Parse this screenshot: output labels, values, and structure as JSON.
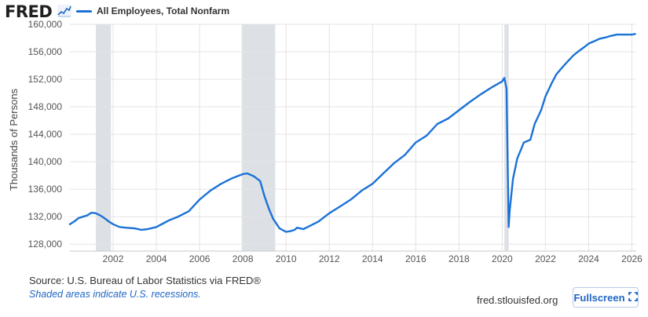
{
  "header": {
    "logo_text": "FRED",
    "logo_icon": "line-graph-icon",
    "legend_label": "All Employees, Total Nonfarm"
  },
  "colors": {
    "series": "#1b72d6",
    "recession": "#dde1e6",
    "grid": "#e3e3e3",
    "note": "#1f66c2",
    "brand": "#1f66c2"
  },
  "footer": {
    "source": "Source: U.S. Bureau of Labor Statistics via FRED®",
    "note": "Shaded areas indicate U.S. recessions.",
    "url": "fred.stlouisfed.org",
    "fullscreen_label": "Fullscreen",
    "fullscreen_icon": "expand-icon"
  },
  "chart_data": {
    "type": "line",
    "title": "All Employees, Total Nonfarm",
    "xlabel": "",
    "ylabel": "Thousands of Persons",
    "xlim": [
      2000.0,
      2026.2
    ],
    "ylim": [
      127000,
      160000
    ],
    "yticks": [
      128000,
      132000,
      136000,
      140000,
      144000,
      148000,
      152000,
      156000,
      160000
    ],
    "ytick_labels": [
      "128,000",
      "132,000",
      "136,000",
      "140,000",
      "144,000",
      "148,000",
      "152,000",
      "156,000",
      "160,000"
    ],
    "xticks": [
      2002,
      2004,
      2006,
      2008,
      2010,
      2012,
      2014,
      2016,
      2018,
      2020,
      2022,
      2024,
      2026
    ],
    "xtick_labels": [
      "2002",
      "2004",
      "2006",
      "2008",
      "2010",
      "2012",
      "2014",
      "2016",
      "2018",
      "2020",
      "2022",
      "2024",
      "2026"
    ],
    "grid": true,
    "recessions": [
      [
        2001.2,
        2001.9
      ],
      [
        2007.95,
        2009.5
      ],
      [
        2020.1,
        2020.3
      ]
    ],
    "series": [
      {
        "name": "All Employees, Total Nonfarm",
        "x": [
          2000.0,
          2000.2,
          2000.4,
          2000.6,
          2000.8,
          2001.0,
          2001.2,
          2001.4,
          2001.6,
          2001.8,
          2002.0,
          2002.3,
          2002.6,
          2003.0,
          2003.3,
          2003.6,
          2004.0,
          2004.3,
          2004.6,
          2005.0,
          2005.5,
          2006.0,
          2006.5,
          2007.0,
          2007.5,
          2008.0,
          2008.2,
          2008.5,
          2008.8,
          2009.0,
          2009.2,
          2009.4,
          2009.7,
          2010.0,
          2010.2,
          2010.4,
          2010.5,
          2010.8,
          2011.0,
          2011.5,
          2012.0,
          2012.5,
          2013.0,
          2013.5,
          2014.0,
          2014.5,
          2015.0,
          2015.5,
          2016.0,
          2016.5,
          2017.0,
          2017.5,
          2018.0,
          2018.5,
          2019.0,
          2019.5,
          2020.0,
          2020.1,
          2020.2,
          2020.3,
          2020.35,
          2020.5,
          2020.7,
          2020.9,
          2021.0,
          2021.3,
          2021.5,
          2021.8,
          2022.0,
          2022.3,
          2022.5,
          2022.8,
          2023.0,
          2023.3,
          2023.5,
          2023.8,
          2024.0,
          2024.3,
          2024.5,
          2024.8,
          2025.0,
          2025.3,
          2025.5,
          2025.8,
          2026.0,
          2026.15
        ],
        "values": [
          130900,
          131300,
          131800,
          132000,
          132200,
          132600,
          132500,
          132200,
          131800,
          131300,
          130900,
          130500,
          130400,
          130300,
          130100,
          130200,
          130500,
          131000,
          131500,
          132000,
          132800,
          134500,
          135800,
          136800,
          137600,
          138200,
          138300,
          137900,
          137200,
          135000,
          133200,
          131700,
          130300,
          129800,
          129900,
          130100,
          130400,
          130200,
          130500,
          131300,
          132500,
          133500,
          134500,
          135800,
          136800,
          138300,
          139800,
          141000,
          142800,
          143800,
          145500,
          146300,
          147500,
          148700,
          149800,
          150800,
          151700,
          152200,
          150600,
          130500,
          133000,
          137500,
          140500,
          142000,
          142800,
          143200,
          145500,
          147500,
          149500,
          151500,
          152700,
          153800,
          154500,
          155500,
          156000,
          156700,
          157200,
          157600,
          157900,
          158100,
          158300,
          158500,
          158500,
          158500,
          158500,
          158600
        ]
      }
    ]
  }
}
